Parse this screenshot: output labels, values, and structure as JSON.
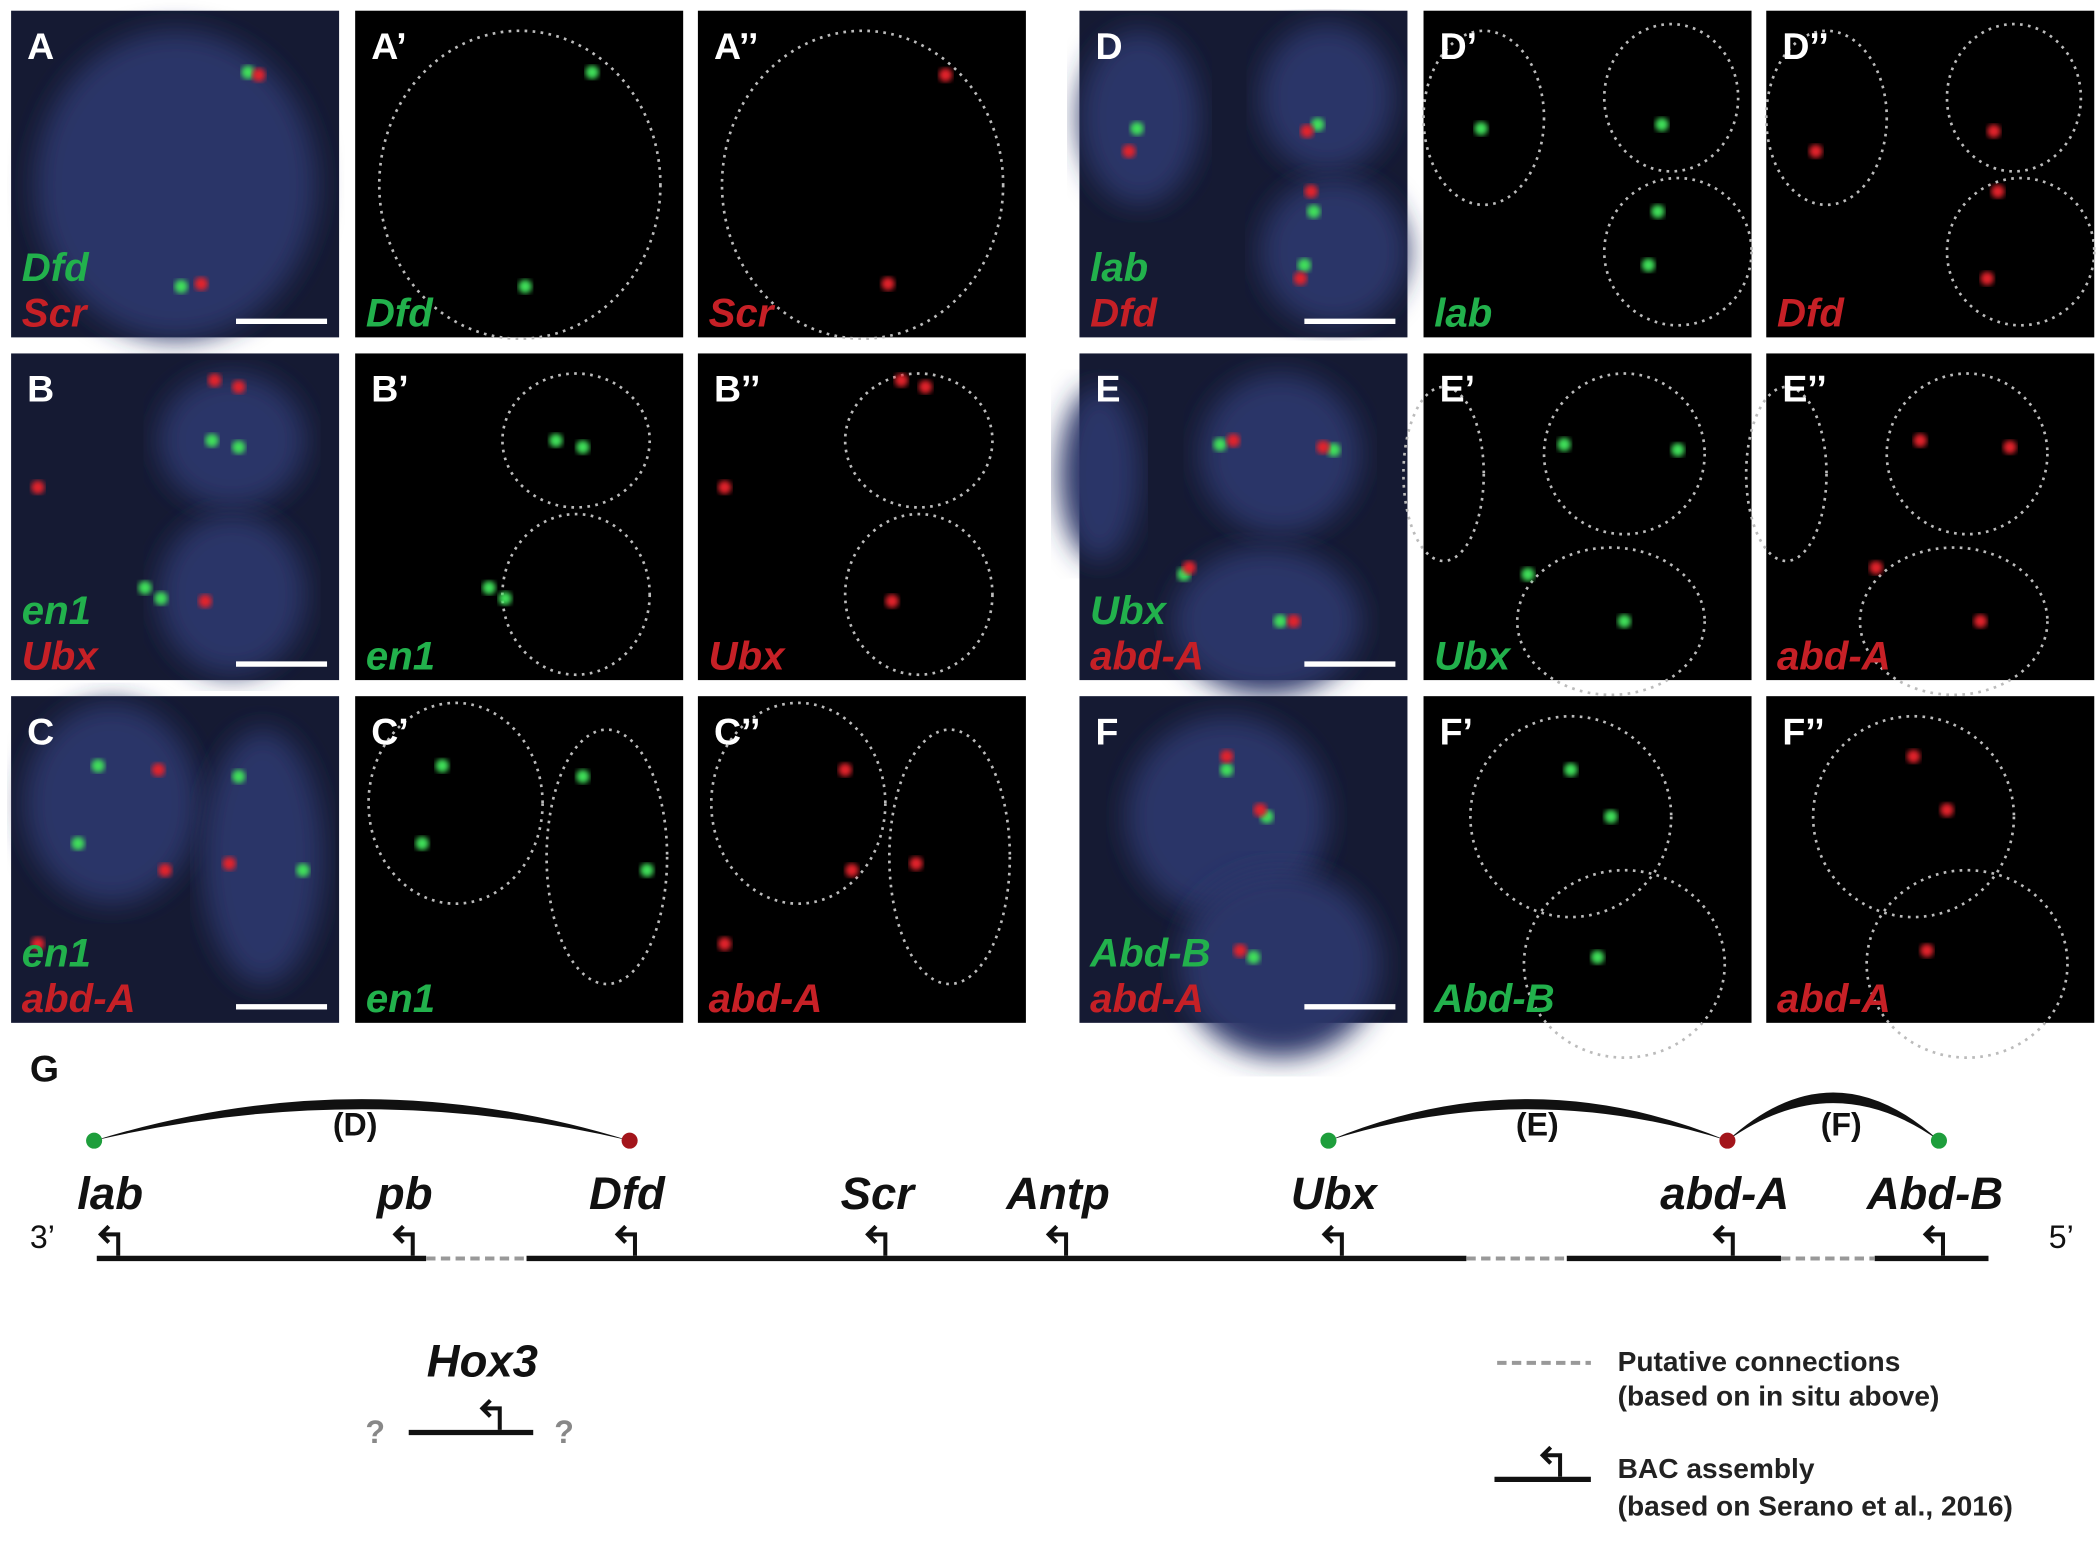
{
  "panels": [
    {
      "label": "A",
      "label_green": "A’",
      "label_red": "A’’",
      "green_gene": "Dfd",
      "red_gene": "Scr"
    },
    {
      "label": "B",
      "label_green": "B’",
      "label_red": "B’’",
      "green_gene": "en1",
      "red_gene": "Ubx"
    },
    {
      "label": "C",
      "label_green": "C’",
      "label_red": "C’’",
      "green_gene": "en1",
      "red_gene": "abd-A"
    },
    {
      "label": "D",
      "label_green": "D’",
      "label_red": "D’’",
      "green_gene": "lab",
      "red_gene": "Dfd"
    },
    {
      "label": "E",
      "label_green": "E’",
      "label_red": "E’’",
      "green_gene": "Ubx",
      "red_gene": "abd-A"
    },
    {
      "label": "F",
      "label_green": "F’",
      "label_red": "F’’",
      "green_gene": "Abd-B",
      "red_gene": "abd-A"
    }
  ],
  "diagram": {
    "label": "G",
    "genes": [
      "lab",
      "pb",
      "Dfd",
      "Scr",
      "Antp",
      "Ubx",
      "abd-A",
      "Abd-B"
    ],
    "connections": [
      "(D)",
      "(E)",
      "(F)"
    ],
    "end_left": "3’",
    "end_right": "5’",
    "hox3": {
      "label": "Hox3",
      "unknown_left": "?",
      "unknown_right": "?"
    },
    "legend": [
      {
        "title": "Putative connections",
        "note": "(based on in situ above)"
      },
      {
        "title": "BAC assembly",
        "note": "(based on Serano et al., 2016)"
      }
    ]
  }
}
